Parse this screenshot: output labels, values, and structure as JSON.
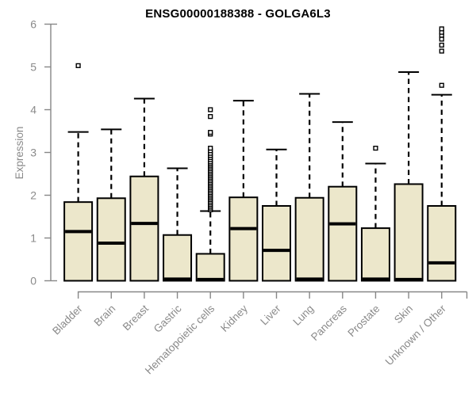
{
  "chart_data": {
    "type": "boxplot",
    "title": "ENSG00000188388 - GOLGA6L3",
    "ylabel": "Expression",
    "xlabel": "",
    "ylim": [
      0,
      6
    ],
    "yticks": [
      0,
      1,
      2,
      3,
      4,
      5,
      6
    ],
    "grid": false,
    "legend": "none",
    "categories": [
      "Bladder",
      "Brain",
      "Breast",
      "Gastric",
      "Hematopoietic cells",
      "Kidney",
      "Liver",
      "Lung",
      "Pancreas",
      "Prostate",
      "Skin",
      "Unknown / Other"
    ],
    "boxes": [
      {
        "category": "Bladder",
        "whisker_low": 0,
        "q1": 0,
        "median": 1.15,
        "q3": 1.84,
        "whisker_high": 3.48,
        "outliers": [
          5.03
        ]
      },
      {
        "category": "Brain",
        "whisker_low": 0,
        "q1": 0,
        "median": 0.88,
        "q3": 1.93,
        "whisker_high": 3.54,
        "outliers": []
      },
      {
        "category": "Breast",
        "whisker_low": 0,
        "q1": 0,
        "median": 1.34,
        "q3": 2.44,
        "whisker_high": 4.26,
        "outliers": []
      },
      {
        "category": "Gastric",
        "whisker_low": 0,
        "q1": 0,
        "median": 0.04,
        "q3": 1.07,
        "whisker_high": 2.63,
        "outliers": []
      },
      {
        "category": "Hematopoietic cells",
        "whisker_low": 0,
        "q1": 0,
        "median": 0.03,
        "q3": 0.63,
        "whisker_high": 1.63,
        "outliers": [
          1.66,
          1.7,
          1.74,
          1.78,
          1.82,
          1.86,
          1.9,
          1.94,
          1.98,
          2.02,
          2.06,
          2.1,
          2.14,
          2.18,
          2.22,
          2.26,
          2.3,
          2.34,
          2.38,
          2.42,
          2.46,
          2.5,
          2.54,
          2.58,
          2.62,
          2.66,
          2.7,
          2.74,
          2.78,
          2.83,
          2.88,
          2.93,
          2.98,
          3.04,
          3.1,
          3.43,
          3.47,
          3.84,
          4.0
        ]
      },
      {
        "category": "Kidney",
        "whisker_low": 0,
        "q1": 0,
        "median": 1.22,
        "q3": 1.95,
        "whisker_high": 4.21,
        "outliers": []
      },
      {
        "category": "Liver",
        "whisker_low": 0,
        "q1": 0,
        "median": 0.71,
        "q3": 1.75,
        "whisker_high": 3.07,
        "outliers": []
      },
      {
        "category": "Lung",
        "whisker_low": 0,
        "q1": 0,
        "median": 0.04,
        "q3": 1.94,
        "whisker_high": 4.37,
        "outliers": []
      },
      {
        "category": "Pancreas",
        "whisker_low": 0,
        "q1": 0,
        "median": 1.33,
        "q3": 2.2,
        "whisker_high": 3.71,
        "outliers": []
      },
      {
        "category": "Prostate",
        "whisker_low": 0,
        "q1": 0,
        "median": 0.04,
        "q3": 1.23,
        "whisker_high": 2.74,
        "outliers": [
          3.1
        ]
      },
      {
        "category": "Skin",
        "whisker_low": 0,
        "q1": 0,
        "median": 0.03,
        "q3": 2.26,
        "whisker_high": 4.88,
        "outliers": []
      },
      {
        "category": "Unknown / Other",
        "whisker_low": 0,
        "q1": 0,
        "median": 0.42,
        "q3": 1.75,
        "whisker_high": 4.35,
        "outliers": [
          4.57,
          5.37,
          5.51,
          5.65,
          5.74,
          5.81,
          5.89
        ]
      }
    ],
    "colors": {
      "box_fill": "#ece7cb",
      "box_border": "#000000",
      "median": "#000000",
      "whisker": "#000000",
      "outlier_border": "#000000",
      "outlier_fill": "#ffffff",
      "axis": "#878787",
      "tick_label": "#8a8a8a",
      "title": "#000000"
    }
  }
}
